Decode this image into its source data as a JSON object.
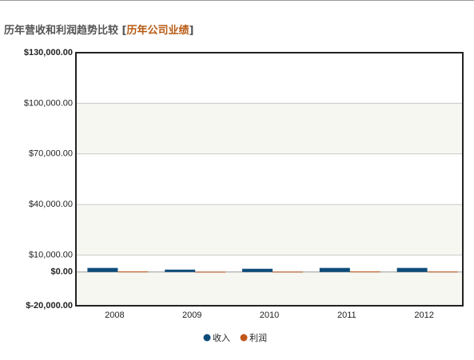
{
  "chart_data": {
    "type": "bar",
    "title": "历年营收和利润趋势比较",
    "title_brackets": [
      "[",
      "]"
    ],
    "title_link": "历年公司业绩",
    "categories": [
      "2008",
      "2009",
      "2010",
      "2011",
      "2012"
    ],
    "series": [
      {
        "name": "收入",
        "color": "#0d4c7a",
        "values": [
          2400,
          1400,
          1900,
          2400,
          2400
        ]
      },
      {
        "name": "利润",
        "color": "#c0561a",
        "values": [
          300,
          150,
          200,
          300,
          250
        ]
      }
    ],
    "ylim": [
      -20000,
      130000
    ],
    "yticks": [
      {
        "value": -20000,
        "label": "$-20,000.00"
      },
      {
        "value": 0,
        "label": "$0.00"
      },
      {
        "value": 10000,
        "label": "$10,000.00"
      },
      {
        "value": 40000,
        "label": "$40,000.00"
      },
      {
        "value": 70000,
        "label": "$70,000.00"
      },
      {
        "value": 100000,
        "label": "$100,000.00"
      },
      {
        "value": 130000,
        "label": "$130,000.00"
      }
    ],
    "grid": true,
    "legend": "bottom"
  }
}
